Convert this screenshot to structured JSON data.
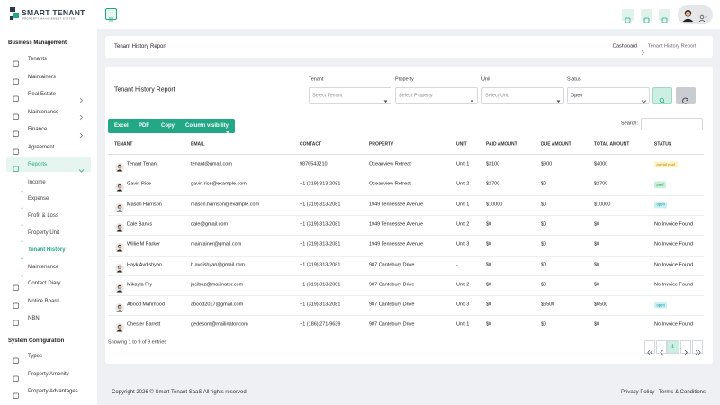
{
  "header": {
    "brand": "SMART TENANT",
    "tagline": "PROPERTY MANAGEMENT SYSTEM"
  },
  "sidebar": {
    "sections": [
      {
        "title": "Business Management",
        "items": [
          {
            "label": "Tenants"
          },
          {
            "label": "Maintainers"
          },
          {
            "label": "Real Estate"
          },
          {
            "label": "Maintenance"
          },
          {
            "label": "Finance"
          },
          {
            "label": "Agreement"
          },
          {
            "label": "Reports",
            "submenu": [
              "Income",
              "Expense",
              "Profit & Loss",
              "Property Unit",
              "Tenant History",
              "Maintenance"
            ]
          },
          {
            "label": "Contact Diary"
          },
          {
            "label": "Notice Board"
          },
          {
            "label": "NBN"
          }
        ]
      },
      {
        "title": "System Configuration",
        "items": [
          {
            "label": "Types"
          },
          {
            "label": "Property Amenity"
          },
          {
            "label": "Property Advantages"
          }
        ]
      }
    ]
  },
  "breadcrumb": {
    "page_title": "Tenant History Report",
    "trail": [
      "Dashboard",
      "Tenant History Report"
    ]
  },
  "report": {
    "title": "Tenant History Report",
    "filters": [
      {
        "label": "Tenant",
        "placeholder": "Select Tenant"
      },
      {
        "label": "Property",
        "placeholder": "Select Property"
      },
      {
        "label": "Unit",
        "placeholder": "Select Unit"
      },
      {
        "label": "Status",
        "value": "Open"
      }
    ],
    "export_buttons": [
      "Excel",
      "PDF",
      "Copy",
      "Column visibility"
    ],
    "search_label": "Search:",
    "table": {
      "columns": [
        "TENANT",
        "EMAIL",
        "CONTACT",
        "PROPERTY",
        "UNIT",
        "PAID AMOUNT",
        "DUE AMOUNT",
        "TOTAL AMOUNT",
        "STATUS"
      ],
      "rows": [
        [
          "Tenant Tenant",
          "tenant@gmail.com",
          "9876543210",
          "Oceanview Retreat",
          "Unit 1",
          "$3100",
          "$900",
          "$4000",
          "partial paid"
        ],
        [
          "Gavin Rice",
          "gavin.rice@example.com",
          "+1 (319) 313-2081",
          "Oceanview Retreat",
          "Unit 2",
          "$2700",
          "$0",
          "$2700",
          "paid"
        ],
        [
          "Mason Harrison",
          "mason.harrison@example.com",
          "+1 (319) 313-2081",
          "1949 Tennessee Avenue",
          "Unit 1",
          "$10000",
          "$0",
          "$10000",
          "open"
        ],
        [
          "Dale Banks",
          "dale@gmail.com",
          "+1 (319) 313-2081",
          "1949 Tennessee Avenue",
          "Unit 2",
          "$0",
          "$0",
          "$0",
          "No Invoice Found"
        ],
        [
          "Willie M Parker",
          "maintainer@gmail.com",
          "+1 (319) 313-2081",
          "1949 Tennessee Avenue",
          "Unit 3",
          "$0",
          "$0",
          "$0",
          "No Invoice Found"
        ],
        [
          "Hayk Avdishyan",
          "h.avdishyan@gmail.com",
          "+1 (319) 313-2081",
          "987 Cantebury Drive",
          "-",
          "$0",
          "$0",
          "$0",
          "No Invoice Found"
        ],
        [
          "Mikayla Fry",
          "jucibuz@mailinator.com",
          "+1 (319) 313-2081",
          "987 Cantebury Drive",
          "Unit 2",
          "$0",
          "$0",
          "$0",
          "No Invoice Found"
        ],
        [
          "Abood Mahmood",
          "abood2017@gmail.com",
          "+1 (319) 313-2081",
          "987 Cantebury Drive",
          "Unit 3",
          "$0",
          "$6500",
          "$6500",
          "open"
        ],
        [
          "Chester Barrett",
          "gedesom@mailinator.com",
          "+1 (186) 271-9639",
          "987 Cantebury Drive",
          "Unit 1",
          "$0",
          "$0",
          "$0",
          "No Invoice Found"
        ]
      ]
    },
    "info": "Showing 1 to 9 of 9 entries",
    "pagination": {
      "current": 1
    }
  },
  "footer": {
    "copyright": "Copyright 2026 © Smart Tenant SaaS All rights reserved.",
    "links": [
      "Privacy Policy",
      "Terms & Conditions"
    ]
  }
}
